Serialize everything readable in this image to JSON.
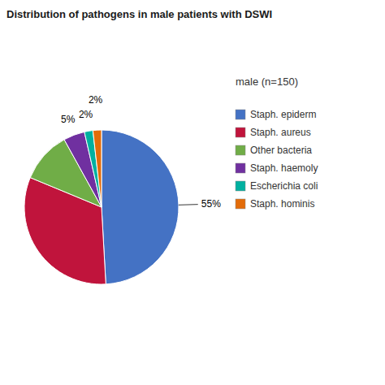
{
  "chart_data": {
    "type": "pie",
    "title": "Distribution of pathogens in male patients with DSWI",
    "subtitle": "male (n=150)",
    "categories": [
      "Staph. epiderm",
      "Staph. aureus",
      "Other bacteria",
      "Staph. haemoly",
      "Escherichia coli",
      "Staph. hominis"
    ],
    "values": [
      55,
      36,
      12,
      5,
      2,
      2
    ],
    "value_labels": [
      "55%",
      null,
      null,
      "5%",
      "2%",
      "2%"
    ],
    "colors": [
      "#4472C4",
      "#C0143C",
      "#70AD47",
      "#7030A0",
      "#00B0A0",
      "#E36C0A"
    ],
    "data_labels": true,
    "legend": "right"
  }
}
